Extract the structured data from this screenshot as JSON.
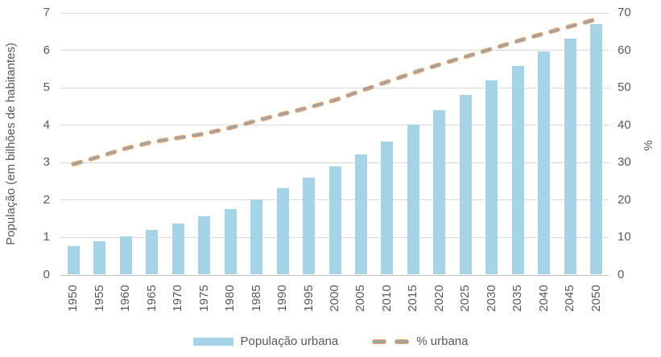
{
  "chart_data": {
    "type": "bar",
    "combo": "bar+line",
    "categories": [
      "1950",
      "1955",
      "1960",
      "1965",
      "1970",
      "1975",
      "1980",
      "1985",
      "1990",
      "1995",
      "2000",
      "2005",
      "2010",
      "2015",
      "2020",
      "2025",
      "2030",
      "2035",
      "2040",
      "2045",
      "2050"
    ],
    "series": [
      {
        "name": "População urbana",
        "type": "bar",
        "axis": "left",
        "color": "#A5D4E7",
        "values": [
          0.75,
          0.87,
          1.02,
          1.19,
          1.35,
          1.54,
          1.75,
          2.0,
          2.29,
          2.57,
          2.87,
          3.21,
          3.55,
          4.0,
          4.38,
          4.79,
          5.17,
          5.56,
          5.95,
          6.3,
          6.68
        ]
      },
      {
        "name": "% urbana",
        "type": "dashed-line",
        "axis": "right",
        "color": "#A3A3A3",
        "outline_color": "#F0A163",
        "values": [
          29.6,
          31.6,
          33.8,
          35.5,
          36.6,
          37.7,
          39.3,
          41.2,
          43.0,
          44.7,
          46.7,
          49.2,
          51.6,
          54.0,
          56.2,
          58.3,
          60.4,
          62.5,
          64.5,
          66.4,
          68.3
        ]
      }
    ],
    "left_axis": {
      "title": "População (em bilhões de habitantes)",
      "min": 0,
      "max": 7,
      "step": 1,
      "ticks": [
        0,
        1,
        2,
        3,
        4,
        5,
        6,
        7
      ]
    },
    "right_axis": {
      "title": "%",
      "min": 0,
      "max": 70,
      "step": 10,
      "ticks": [
        0,
        10,
        20,
        30,
        40,
        50,
        60,
        70
      ]
    },
    "grid": true,
    "gridline_color": "#D9D9D9",
    "legend_position": "bottom"
  },
  "legend": {
    "bar_label": "População urbana",
    "line_label": "% urbana"
  }
}
